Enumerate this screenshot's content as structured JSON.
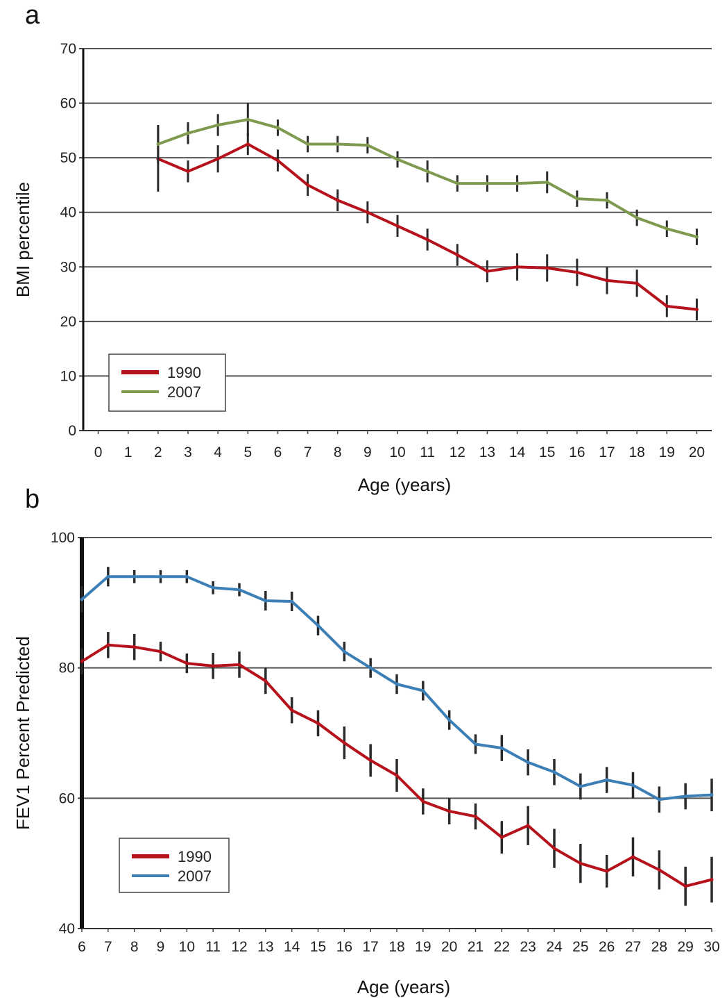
{
  "chart_data": [
    {
      "panel": "a",
      "type": "line",
      "xlabel": "Age (years)",
      "ylabel": "BMI percentile",
      "x_ticks": [
        0,
        1,
        2,
        3,
        4,
        5,
        6,
        7,
        8,
        9,
        10,
        11,
        12,
        13,
        14,
        15,
        16,
        17,
        18,
        19,
        20
      ],
      "y_ticks": [
        0,
        10,
        20,
        30,
        40,
        50,
        60,
        70
      ],
      "xlim": [
        -0.5,
        20.5
      ],
      "ylim": [
        0,
        70
      ],
      "grid": "horizontal",
      "legend_position": "bottom-left",
      "x": [
        2,
        3,
        4,
        5,
        6,
        7,
        8,
        9,
        10,
        11,
        12,
        13,
        14,
        15,
        16,
        17,
        18,
        19,
        20
      ],
      "series": [
        {
          "name": "1990",
          "color": "#b5121b",
          "values": [
            49.8,
            47.5,
            49.8,
            52.5,
            49.5,
            45,
            42.2,
            40,
            37.5,
            35,
            32.2,
            29.2,
            30,
            29.8,
            29,
            27.5,
            27,
            22.8,
            22.2
          ],
          "error": [
            6,
            2,
            2.5,
            2,
            2,
            2,
            2,
            2,
            2,
            2,
            2,
            2,
            2.5,
            2.5,
            2.5,
            2.5,
            2.5,
            2,
            2
          ]
        },
        {
          "name": "2007",
          "color": "#7e9a4e",
          "values": [
            52.5,
            54.5,
            56,
            57,
            55.5,
            52.5,
            52.5,
            52.3,
            49.7,
            47.5,
            45.3,
            45.3,
            45.3,
            45.5,
            42.5,
            42.2,
            39,
            37,
            35.5
          ],
          "error": [
            3.5,
            2,
            2,
            3,
            1.5,
            1.5,
            1.5,
            1.5,
            1.5,
            2,
            1.5,
            1.5,
            1.5,
            2,
            1.5,
            1.5,
            1.5,
            1.5,
            1.5
          ]
        }
      ]
    },
    {
      "panel": "b",
      "type": "line",
      "xlabel": "Age (years)",
      "ylabel": "FEV1 Percent Predicted",
      "x_ticks": [
        6,
        7,
        8,
        9,
        10,
        11,
        12,
        13,
        14,
        15,
        16,
        17,
        18,
        19,
        20,
        21,
        22,
        23,
        24,
        25,
        26,
        27,
        28,
        29,
        30
      ],
      "y_ticks": [
        40,
        60,
        80,
        100
      ],
      "xlim": [
        6,
        30
      ],
      "ylim": [
        40,
        100
      ],
      "grid": "horizontal",
      "legend_position": "bottom-left",
      "x": [
        6,
        7,
        8,
        9,
        10,
        11,
        12,
        13,
        14,
        15,
        16,
        17,
        18,
        19,
        20,
        21,
        22,
        23,
        24,
        25,
        26,
        27,
        28,
        29,
        30
      ],
      "series": [
        {
          "name": "1990",
          "color": "#b5121b",
          "values": [
            81,
            83.5,
            83.2,
            82.5,
            80.7,
            80.3,
            80.5,
            78,
            73.5,
            71.5,
            68.5,
            65.8,
            63.5,
            59.5,
            58,
            57.2,
            54,
            55.8,
            52.3,
            50,
            48.8,
            51,
            49,
            46.5,
            47.5
          ],
          "error": [
            2,
            2,
            2,
            1.5,
            1.5,
            2,
            2,
            2,
            2,
            2,
            2.5,
            2.5,
            2.5,
            2,
            2,
            2,
            2.5,
            3,
            3,
            3,
            2.5,
            3,
            3,
            3,
            3.5
          ]
        },
        {
          "name": "2007",
          "color": "#3c7fb6",
          "values": [
            90.5,
            94,
            94,
            94,
            94,
            92.3,
            92,
            90.3,
            90.2,
            86.5,
            82.5,
            80,
            77.5,
            76.5,
            72,
            68.3,
            67.7,
            65.5,
            64,
            61.8,
            62.8,
            62,
            59.8,
            60.3,
            60.5
          ],
          "error": [
            2,
            1.5,
            1,
            1,
            1,
            1,
            1,
            1.5,
            1.5,
            1.5,
            1.5,
            1.5,
            1.5,
            1.5,
            1.5,
            1.5,
            2,
            2,
            2,
            2,
            2,
            2,
            2,
            2,
            2.5
          ]
        }
      ]
    }
  ]
}
